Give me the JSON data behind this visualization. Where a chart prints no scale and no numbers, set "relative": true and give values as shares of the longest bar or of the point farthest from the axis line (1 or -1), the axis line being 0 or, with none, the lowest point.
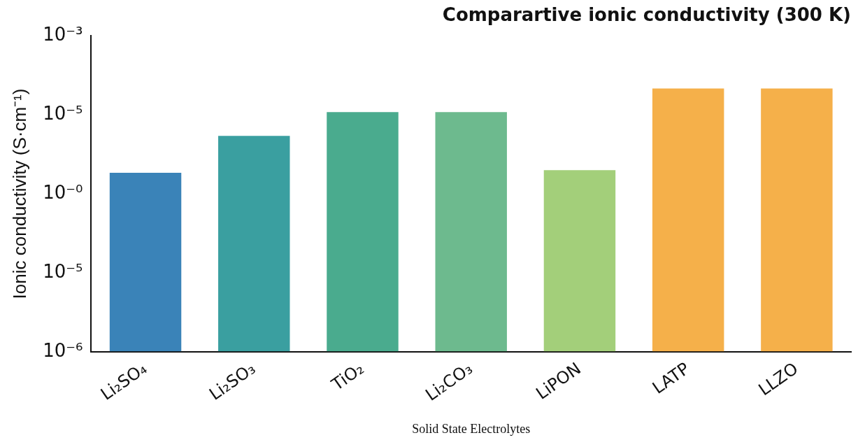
{
  "chart_data": {
    "type": "bar",
    "title": "Comparartive ionic conductivity (300 K)",
    "xlabel": "Solid State Electrolytes",
    "ylabel": "Ionic conductivity (S·cm⁻¹)",
    "categories": [
      "Li₂SO₄",
      "Li₂SO₃",
      "TiO₂",
      "Li₂CO₃",
      "LiPON",
      "LATP",
      "LLZO"
    ],
    "values": [
      0.68,
      0.82,
      0.91,
      0.91,
      0.69,
      1,
      1
    ],
    "colors": [
      "#3a83b8",
      "#3a9fa0",
      "#4aab8e",
      "#6dba8e",
      "#a3cf7a",
      "#f5b04a",
      "#f5b04a"
    ],
    "relative": true,
    "annotations": [
      "10⁻⁶",
      "10⁻⁵",
      "10⁻⁰",
      "10⁻⁵",
      "10⁻³"
    ]
  }
}
